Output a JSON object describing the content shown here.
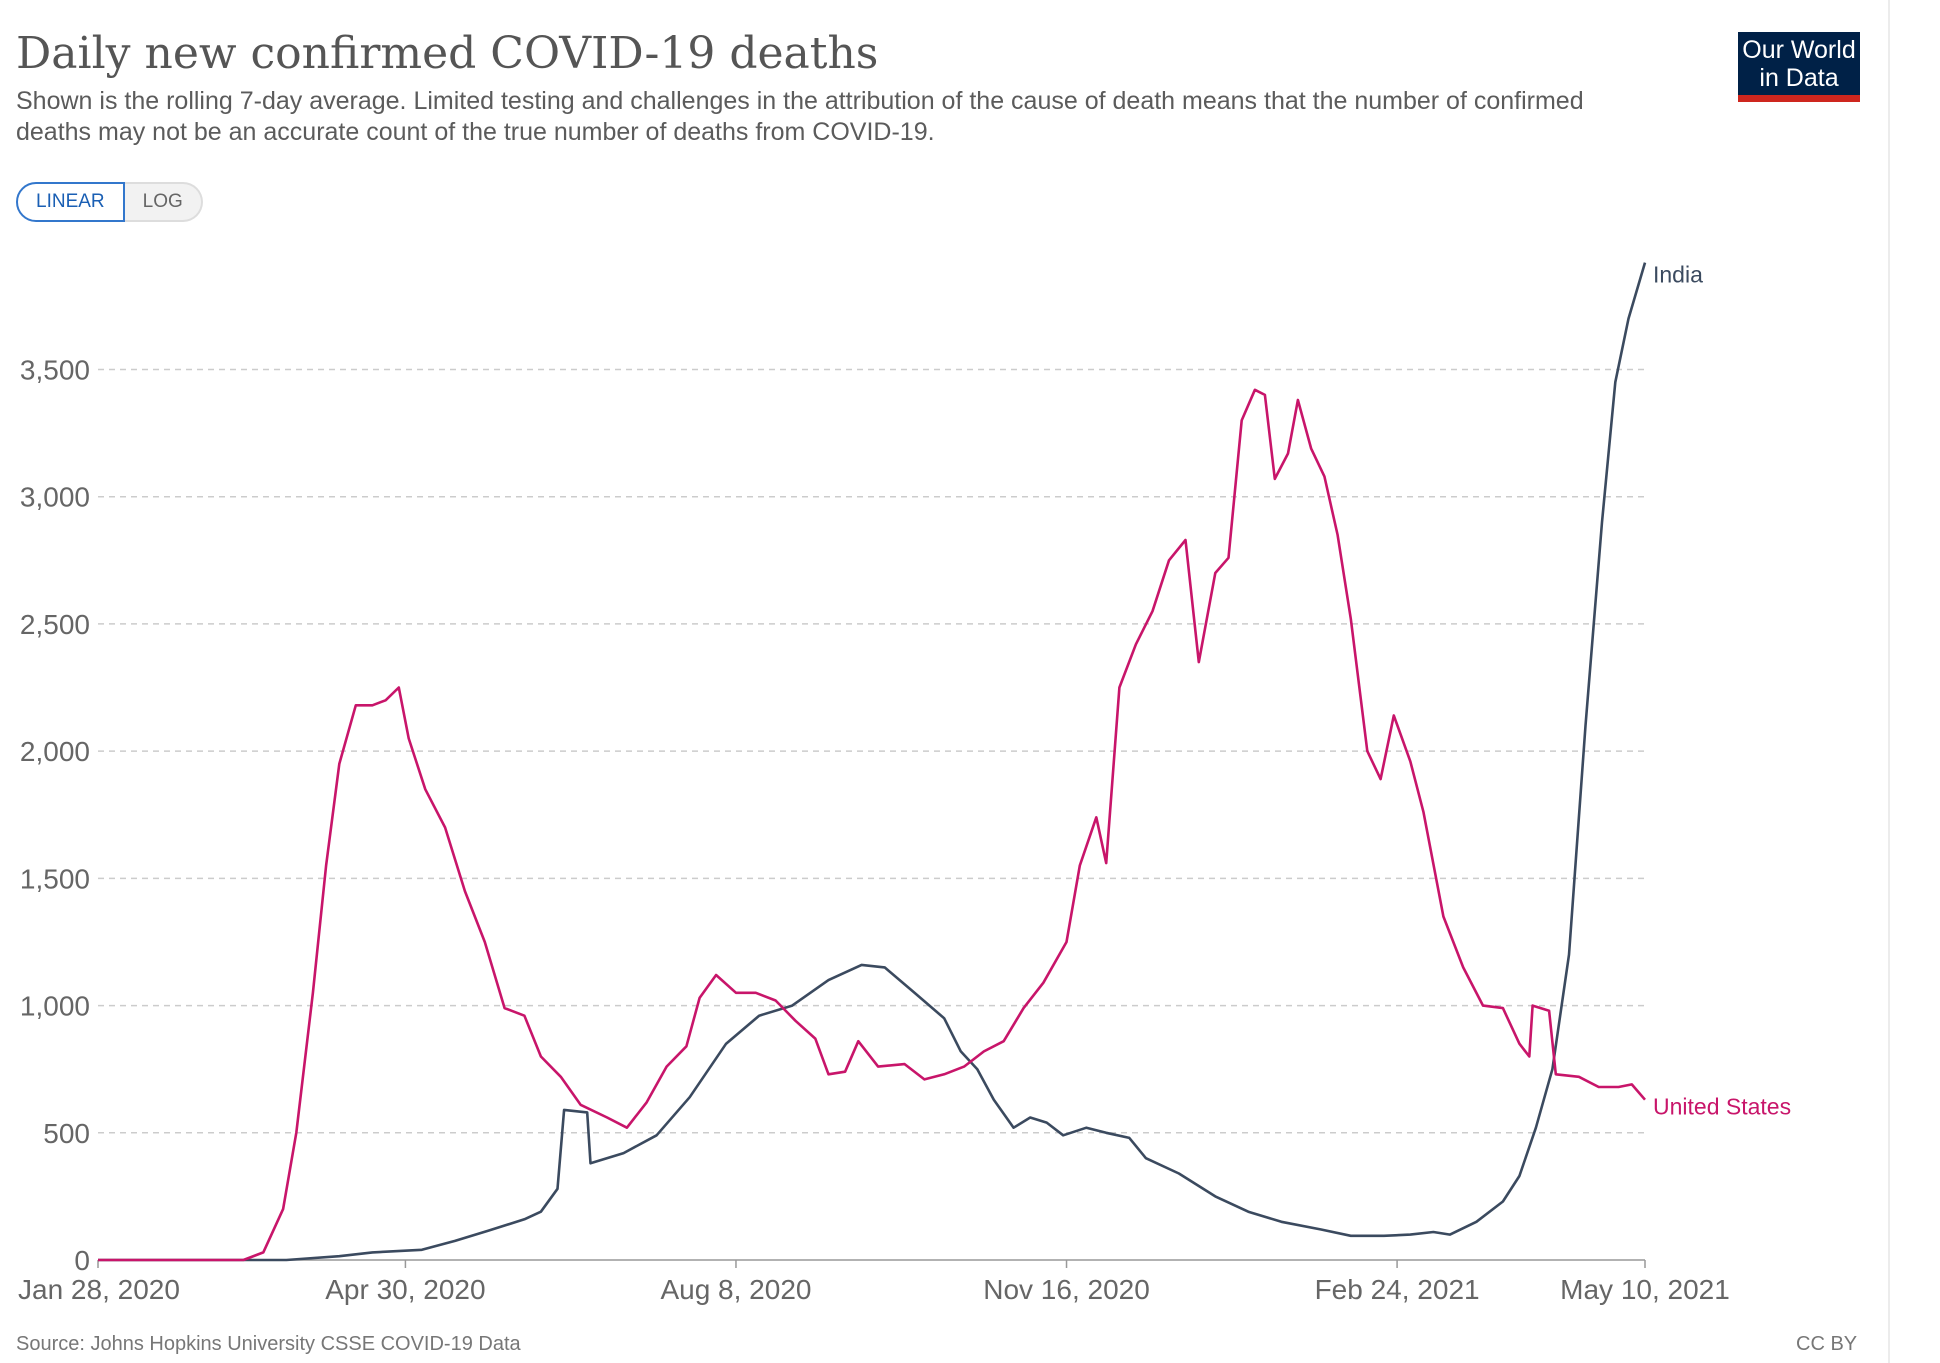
{
  "header": {
    "title": "Daily new confirmed COVID-19 deaths",
    "subtitle": "Shown is the rolling 7-day average. Limited testing and challenges in the attribution of the cause of death means that the number of confirmed deaths may not be an accurate count of the true number of deaths from COVID-19.",
    "logo_line1": "Our World",
    "logo_line2": "in Data"
  },
  "scale_toggle": {
    "linear_label": "LINEAR",
    "log_label": "LOG",
    "selected": "LINEAR"
  },
  "footer": {
    "source": "Source: Johns Hopkins University CSSE COVID-19 Data",
    "license": "CC BY"
  },
  "colors": {
    "india": "#3b4a5f",
    "united_states": "#c8156a",
    "grid": "#cccccc",
    "axis": "#999999"
  },
  "chart_data": {
    "type": "line",
    "title": "Daily new confirmed COVID-19 deaths",
    "xlabel": "",
    "ylabel": "",
    "x_domain": [
      "2020-01-28",
      "2021-05-10"
    ],
    "x_ticks": [
      {
        "date": "2020-01-28",
        "label": "Jan 28, 2020"
      },
      {
        "date": "2020-04-30",
        "label": "Apr 30, 2020"
      },
      {
        "date": "2020-08-08",
        "label": "Aug 8, 2020"
      },
      {
        "date": "2020-11-16",
        "label": "Nov 16, 2020"
      },
      {
        "date": "2021-02-24",
        "label": "Feb 24, 2021"
      },
      {
        "date": "2021-05-10",
        "label": "May 10, 2021"
      }
    ],
    "ylim": [
      0,
      3950
    ],
    "y_ticks": [
      {
        "value": 0,
        "label": "0"
      },
      {
        "value": 500,
        "label": "500"
      },
      {
        "value": 1000,
        "label": "1,000"
      },
      {
        "value": 1500,
        "label": "1,500"
      },
      {
        "value": 2000,
        "label": "2,000"
      },
      {
        "value": 2500,
        "label": "2,500"
      },
      {
        "value": 3000,
        "label": "3,000"
      },
      {
        "value": 3500,
        "label": "3,500"
      }
    ],
    "grid": "horizontal dashed",
    "legend": "inline labels at line ends",
    "series": [
      {
        "name": "India",
        "key": "india",
        "points": [
          [
            "2020-01-28",
            0
          ],
          [
            "2020-03-25",
            0
          ],
          [
            "2020-04-10",
            15
          ],
          [
            "2020-04-20",
            30
          ],
          [
            "2020-05-05",
            40
          ],
          [
            "2020-05-15",
            75
          ],
          [
            "2020-05-25",
            115
          ],
          [
            "2020-06-05",
            160
          ],
          [
            "2020-06-10",
            190
          ],
          [
            "2020-06-15",
            280
          ],
          [
            "2020-06-17",
            590
          ],
          [
            "2020-06-24",
            580
          ],
          [
            "2020-06-25",
            380
          ],
          [
            "2020-07-05",
            420
          ],
          [
            "2020-07-15",
            490
          ],
          [
            "2020-07-25",
            640
          ],
          [
            "2020-08-05",
            850
          ],
          [
            "2020-08-15",
            960
          ],
          [
            "2020-08-25",
            1000
          ],
          [
            "2020-09-05",
            1100
          ],
          [
            "2020-09-15",
            1160
          ],
          [
            "2020-09-22",
            1150
          ],
          [
            "2020-10-01",
            1050
          ],
          [
            "2020-10-10",
            950
          ],
          [
            "2020-10-15",
            820
          ],
          [
            "2020-10-20",
            750
          ],
          [
            "2020-10-25",
            630
          ],
          [
            "2020-10-31",
            520
          ],
          [
            "2020-11-05",
            560
          ],
          [
            "2020-11-10",
            540
          ],
          [
            "2020-11-15",
            490
          ],
          [
            "2020-11-22",
            520
          ],
          [
            "2020-11-28",
            500
          ],
          [
            "2020-12-05",
            480
          ],
          [
            "2020-12-10",
            400
          ],
          [
            "2020-12-20",
            340
          ],
          [
            "2020-12-31",
            250
          ],
          [
            "2021-01-10",
            190
          ],
          [
            "2021-01-20",
            150
          ],
          [
            "2021-02-01",
            120
          ],
          [
            "2021-02-10",
            95
          ],
          [
            "2021-02-20",
            95
          ],
          [
            "2021-02-28",
            100
          ],
          [
            "2021-03-07",
            110
          ],
          [
            "2021-03-12",
            100
          ],
          [
            "2021-03-20",
            150
          ],
          [
            "2021-03-28",
            230
          ],
          [
            "2021-04-02",
            330
          ],
          [
            "2021-04-07",
            520
          ],
          [
            "2021-04-12",
            750
          ],
          [
            "2021-04-17",
            1200
          ],
          [
            "2021-04-22",
            2100
          ],
          [
            "2021-04-27",
            2900
          ],
          [
            "2021-05-01",
            3450
          ],
          [
            "2021-05-05",
            3700
          ],
          [
            "2021-05-10",
            3920
          ]
        ]
      },
      {
        "name": "United States",
        "key": "united_states",
        "points": [
          [
            "2020-01-28",
            0
          ],
          [
            "2020-03-12",
            0
          ],
          [
            "2020-03-18",
            30
          ],
          [
            "2020-03-24",
            200
          ],
          [
            "2020-03-28",
            500
          ],
          [
            "2020-04-02",
            1050
          ],
          [
            "2020-04-06",
            1550
          ],
          [
            "2020-04-10",
            1950
          ],
          [
            "2020-04-15",
            2180
          ],
          [
            "2020-04-20",
            2180
          ],
          [
            "2020-04-24",
            2200
          ],
          [
            "2020-04-28",
            2250
          ],
          [
            "2020-05-01",
            2050
          ],
          [
            "2020-05-06",
            1850
          ],
          [
            "2020-05-12",
            1700
          ],
          [
            "2020-05-18",
            1450
          ],
          [
            "2020-05-24",
            1250
          ],
          [
            "2020-05-30",
            990
          ],
          [
            "2020-06-05",
            960
          ],
          [
            "2020-06-10",
            800
          ],
          [
            "2020-06-16",
            720
          ],
          [
            "2020-06-22",
            610
          ],
          [
            "2020-06-30",
            560
          ],
          [
            "2020-07-06",
            520
          ],
          [
            "2020-07-12",
            620
          ],
          [
            "2020-07-18",
            760
          ],
          [
            "2020-07-24",
            840
          ],
          [
            "2020-07-28",
            1030
          ],
          [
            "2020-08-02",
            1120
          ],
          [
            "2020-08-08",
            1050
          ],
          [
            "2020-08-14",
            1050
          ],
          [
            "2020-08-20",
            1020
          ],
          [
            "2020-08-26",
            940
          ],
          [
            "2020-09-01",
            870
          ],
          [
            "2020-09-05",
            730
          ],
          [
            "2020-09-10",
            740
          ],
          [
            "2020-09-14",
            860
          ],
          [
            "2020-09-20",
            760
          ],
          [
            "2020-09-28",
            770
          ],
          [
            "2020-10-04",
            710
          ],
          [
            "2020-10-10",
            730
          ],
          [
            "2020-10-16",
            760
          ],
          [
            "2020-10-22",
            820
          ],
          [
            "2020-10-28",
            860
          ],
          [
            "2020-11-03",
            990
          ],
          [
            "2020-11-09",
            1090
          ],
          [
            "2020-11-16",
            1250
          ],
          [
            "2020-11-20",
            1550
          ],
          [
            "2020-11-25",
            1740
          ],
          [
            "2020-11-28",
            1560
          ],
          [
            "2020-12-02",
            2250
          ],
          [
            "2020-12-07",
            2420
          ],
          [
            "2020-12-12",
            2550
          ],
          [
            "2020-12-17",
            2750
          ],
          [
            "2020-12-22",
            2830
          ],
          [
            "2020-12-26",
            2350
          ],
          [
            "2020-12-31",
            2700
          ],
          [
            "2021-01-04",
            2760
          ],
          [
            "2021-01-08",
            3300
          ],
          [
            "2021-01-12",
            3420
          ],
          [
            "2021-01-15",
            3400
          ],
          [
            "2021-01-18",
            3070
          ],
          [
            "2021-01-22",
            3170
          ],
          [
            "2021-01-25",
            3380
          ],
          [
            "2021-01-29",
            3190
          ],
          [
            "2021-02-02",
            3080
          ],
          [
            "2021-02-06",
            2850
          ],
          [
            "2021-02-10",
            2520
          ],
          [
            "2021-02-15",
            2000
          ],
          [
            "2021-02-19",
            1890
          ],
          [
            "2021-02-23",
            2140
          ],
          [
            "2021-02-28",
            1960
          ],
          [
            "2021-03-04",
            1760
          ],
          [
            "2021-03-10",
            1350
          ],
          [
            "2021-03-16",
            1150
          ],
          [
            "2021-03-22",
            1000
          ],
          [
            "2021-03-28",
            990
          ],
          [
            "2021-04-02",
            850
          ],
          [
            "2021-04-05",
            800
          ],
          [
            "2021-04-06",
            1000
          ],
          [
            "2021-04-11",
            980
          ],
          [
            "2021-04-13",
            730
          ],
          [
            "2021-04-20",
            720
          ],
          [
            "2021-04-26",
            680
          ],
          [
            "2021-05-02",
            680
          ],
          [
            "2021-05-06",
            690
          ],
          [
            "2021-05-10",
            630
          ]
        ]
      }
    ]
  }
}
